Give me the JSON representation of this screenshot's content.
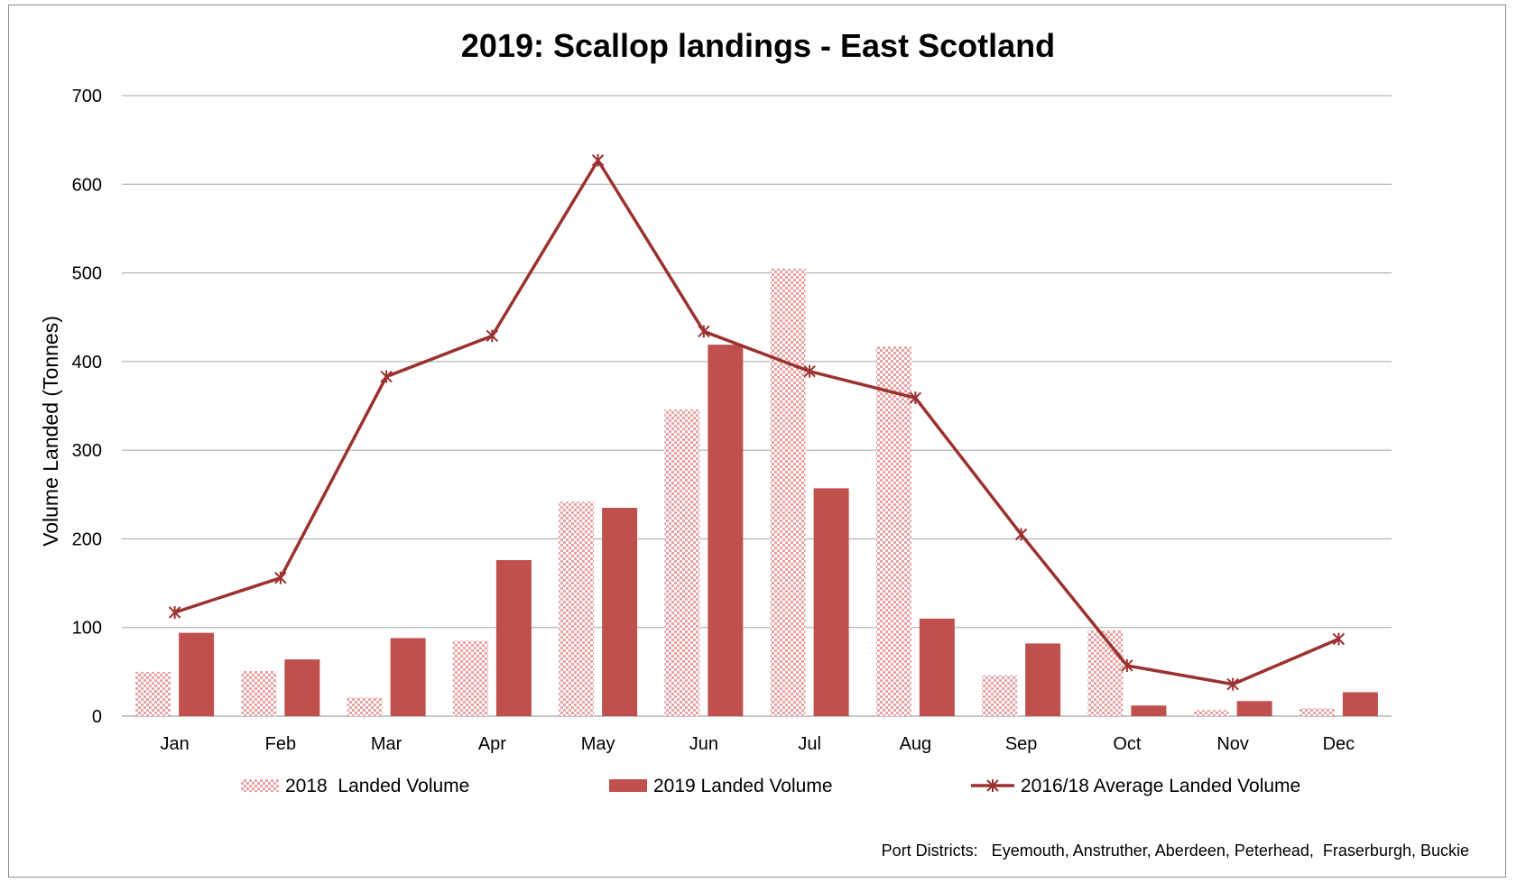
{
  "chart_data": {
    "type": "bar",
    "title": "2019: Scallop landings - East Scotland",
    "ylabel": "Volume Landed (Tonnes)",
    "xlabel": "",
    "ylim": [
      0,
      700
    ],
    "yticks": [
      0,
      100,
      200,
      300,
      400,
      500,
      600,
      700
    ],
    "grid": true,
    "legend_position": "bottom",
    "categories": [
      "Jan",
      "Feb",
      "Mar",
      "Apr",
      "May",
      "Jun",
      "Jul",
      "Aug",
      "Sep",
      "Oct",
      "Nov",
      "Dec"
    ],
    "series": [
      {
        "name": "2018  Landed Volume",
        "type": "bar",
        "pattern": "checkered",
        "color": "#f2b8b8",
        "values": [
          50,
          51,
          21,
          85,
          242,
          346,
          505,
          417,
          46,
          97,
          7,
          9
        ]
      },
      {
        "name": "2019 Landed Volume",
        "type": "bar",
        "color": "#c0504d",
        "values": [
          94,
          64,
          88,
          176,
          235,
          419,
          257,
          110,
          82,
          12,
          17,
          27
        ]
      },
      {
        "name": "2016/18 Average Landed Volume",
        "type": "line",
        "marker": "asterisk",
        "color": "#9b3230",
        "values": [
          117,
          156,
          383,
          429,
          627,
          434,
          389,
          359,
          205,
          57,
          36,
          87
        ]
      }
    ],
    "annotation": "Port Districts:   Eyemouth, Anstruther, Aberdeen, Peterhead,  Fraserburgh, Buckie"
  }
}
